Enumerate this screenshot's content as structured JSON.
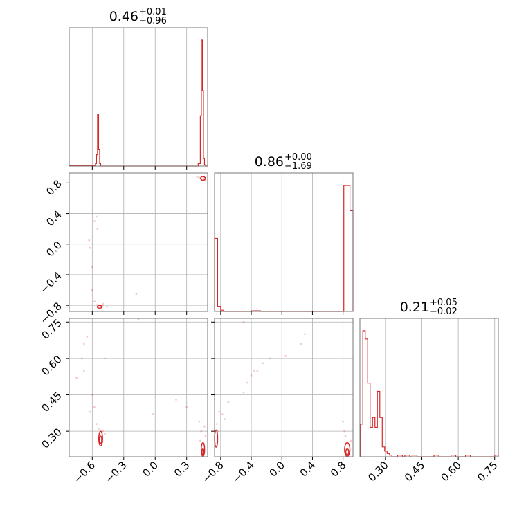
{
  "chart_data": {
    "type": "corner",
    "color": "#d62728",
    "grid": true,
    "parameters": [
      {
        "title_median": "0.46",
        "title_plus": "+0.01",
        "title_minus": "−0.96",
        "range": [
          -0.82,
          0.5
        ],
        "ticks": [
          -0.6,
          -0.3,
          0.0,
          0.3
        ],
        "tick_labels": [
          "−0.6",
          "−0.3",
          "0.0",
          "0.3"
        ],
        "hist": {
          "edges": [
            -0.82,
            -0.58,
            -0.57,
            -0.56,
            -0.55,
            -0.54,
            -0.53,
            -0.52,
            -0.51,
            0.41,
            0.43,
            0.44,
            0.45,
            0.46,
            0.47,
            0.48,
            0.5
          ],
          "counts": [
            0.005,
            0,
            0.02,
            0.09,
            0.41,
            0.13,
            0.02,
            0,
            0,
            0.02,
            0.4,
            1.0,
            0.6,
            0.06,
            0.01,
            0
          ]
        }
      },
      {
        "title_median": "0.86",
        "title_plus": "+0.00",
        "title_minus": "−1.69",
        "range": [
          -0.88,
          0.93
        ],
        "ticks": [
          -0.8,
          -0.4,
          0.0,
          0.4,
          0.8
        ],
        "tick_labels": [
          "−0.8",
          "−0.4",
          "0.0",
          "0.4",
          "0.8"
        ],
        "hist": {
          "edges": [
            -0.88,
            -0.84,
            -0.8,
            -0.76,
            -0.4,
            -0.36,
            -0.32,
            -0.28,
            0.81,
            0.85,
            0.89,
            0.93
          ],
          "counts": [
            0.58,
            0.04,
            0.01,
            0,
            0.005,
            0.005,
            0.005,
            0,
            1.0,
            1.0,
            0.8
          ]
        }
      },
      {
        "title_median": "0.21",
        "title_plus": "+0.05",
        "title_minus": "−0.02",
        "range": [
          0.195,
          0.765
        ],
        "ticks": [
          0.3,
          0.45,
          0.6,
          0.75
        ],
        "tick_labels": [
          "0.30",
          "0.45",
          "0.60",
          "0.75"
        ],
        "hist": {
          "edges": [
            0.197,
            0.207,
            0.217,
            0.227,
            0.237,
            0.247,
            0.257,
            0.267,
            0.277,
            0.287,
            0.297,
            0.307,
            0.317,
            0.327,
            0.35,
            0.37,
            0.38,
            0.4,
            0.41,
            0.43,
            0.5,
            0.52,
            0.57,
            0.59,
            0.63,
            0.65,
            0.75,
            0.765
          ],
          "counts": [
            0.2,
            0.77,
            0.72,
            0.45,
            0.18,
            0.24,
            0.18,
            0.4,
            0.24,
            0.06,
            0.035,
            0.02,
            0.01,
            0,
            0.01,
            0,
            0.01,
            0,
            0.01,
            0,
            0.01,
            0,
            0.01,
            0,
            0.01,
            0,
            0.01
          ]
        }
      }
    ],
    "pairs": [
      {
        "x_param": 0,
        "y_param": 1,
        "contours": [
          {
            "cx": 0.455,
            "cy": 0.86,
            "rx": 0.022,
            "ry": 0.025
          },
          {
            "cx": -0.53,
            "cy": -0.82,
            "rx": 0.022,
            "ry": 0.018
          }
        ],
        "points": [
          [
            -0.6,
            -0.3
          ],
          [
            -0.62,
            -0.05
          ],
          [
            -0.63,
            0.05
          ],
          [
            -0.58,
            0.3
          ],
          [
            -0.56,
            0.36
          ],
          [
            -0.55,
            0.2
          ],
          [
            -0.6,
            -0.6
          ],
          [
            -0.58,
            -0.75
          ],
          [
            -0.55,
            -0.79
          ],
          [
            -0.5,
            -0.8
          ],
          [
            -0.46,
            -0.82
          ],
          [
            -0.18,
            -0.65
          ],
          [
            0.4,
            0.88
          ],
          [
            0.42,
            0.87
          ],
          [
            0.44,
            0.85
          ],
          [
            0.47,
            0.84
          ],
          [
            0.48,
            0.83
          ],
          [
            -0.5,
            -0.78
          ],
          [
            -0.52,
            -0.8
          ],
          [
            0.46,
            0.87
          ]
        ]
      },
      {
        "x_param": 0,
        "y_param": 2,
        "contours": [
          {
            "cx": -0.52,
            "cy": 0.27,
            "rx": 0.018,
            "ry": 0.03
          },
          {
            "cx": -0.52,
            "cy": 0.265,
            "rx": 0.01,
            "ry": 0.015
          },
          {
            "cx": 0.455,
            "cy": 0.225,
            "rx": 0.016,
            "ry": 0.028
          },
          {
            "cx": 0.455,
            "cy": 0.215,
            "rx": 0.009,
            "ry": 0.012
          }
        ],
        "points": [
          [
            -0.75,
            0.52
          ],
          [
            -0.7,
            0.6
          ],
          [
            -0.68,
            0.66
          ],
          [
            -0.65,
            0.69
          ],
          [
            -0.68,
            0.55
          ],
          [
            -0.62,
            0.38
          ],
          [
            -0.58,
            0.4
          ],
          [
            -0.6,
            0.45
          ],
          [
            -0.56,
            0.33
          ],
          [
            -0.54,
            0.31
          ],
          [
            -0.5,
            0.3
          ],
          [
            -0.48,
            0.29
          ],
          [
            -0.48,
            0.6
          ],
          [
            -0.16,
            0.76
          ],
          [
            0.2,
            0.43
          ],
          [
            0.3,
            0.4
          ],
          [
            0.42,
            0.34
          ],
          [
            0.44,
            0.3
          ],
          [
            0.47,
            0.32
          ],
          [
            0.48,
            0.28
          ],
          [
            -0.02,
            0.37
          ],
          [
            0.43,
            0.26
          ],
          [
            0.46,
            0.25
          ],
          [
            -0.53,
            0.28
          ],
          [
            -0.51,
            0.25
          ]
        ]
      },
      {
        "x_param": 1,
        "y_param": 2,
        "contours": [
          {
            "cx": 0.855,
            "cy": 0.225,
            "rx": 0.035,
            "ry": 0.028
          },
          {
            "cx": 0.855,
            "cy": 0.215,
            "rx": 0.02,
            "ry": 0.012
          },
          {
            "cx": -0.86,
            "cy": 0.27,
            "rx": 0.02,
            "ry": 0.035
          }
        ],
        "points": [
          [
            -0.85,
            0.33
          ],
          [
            -0.82,
            0.38
          ],
          [
            -0.78,
            0.37
          ],
          [
            -0.75,
            0.35
          ],
          [
            -0.7,
            0.42
          ],
          [
            -0.5,
            0.46
          ],
          [
            -0.45,
            0.5
          ],
          [
            -0.4,
            0.53
          ],
          [
            -0.36,
            0.55
          ],
          [
            -0.32,
            0.55
          ],
          [
            -0.25,
            0.58
          ],
          [
            -0.15,
            0.6
          ],
          [
            0.05,
            0.61
          ],
          [
            0.25,
            0.66
          ],
          [
            0.3,
            0.7
          ],
          [
            0.8,
            0.34
          ],
          [
            0.82,
            0.3
          ],
          [
            0.83,
            0.28
          ],
          [
            0.9,
            0.26
          ],
          [
            -0.5,
            0.75
          ],
          [
            -0.84,
            0.3
          ],
          [
            -0.87,
            0.25
          ],
          [
            0.84,
            0.25
          ]
        ]
      }
    ]
  }
}
